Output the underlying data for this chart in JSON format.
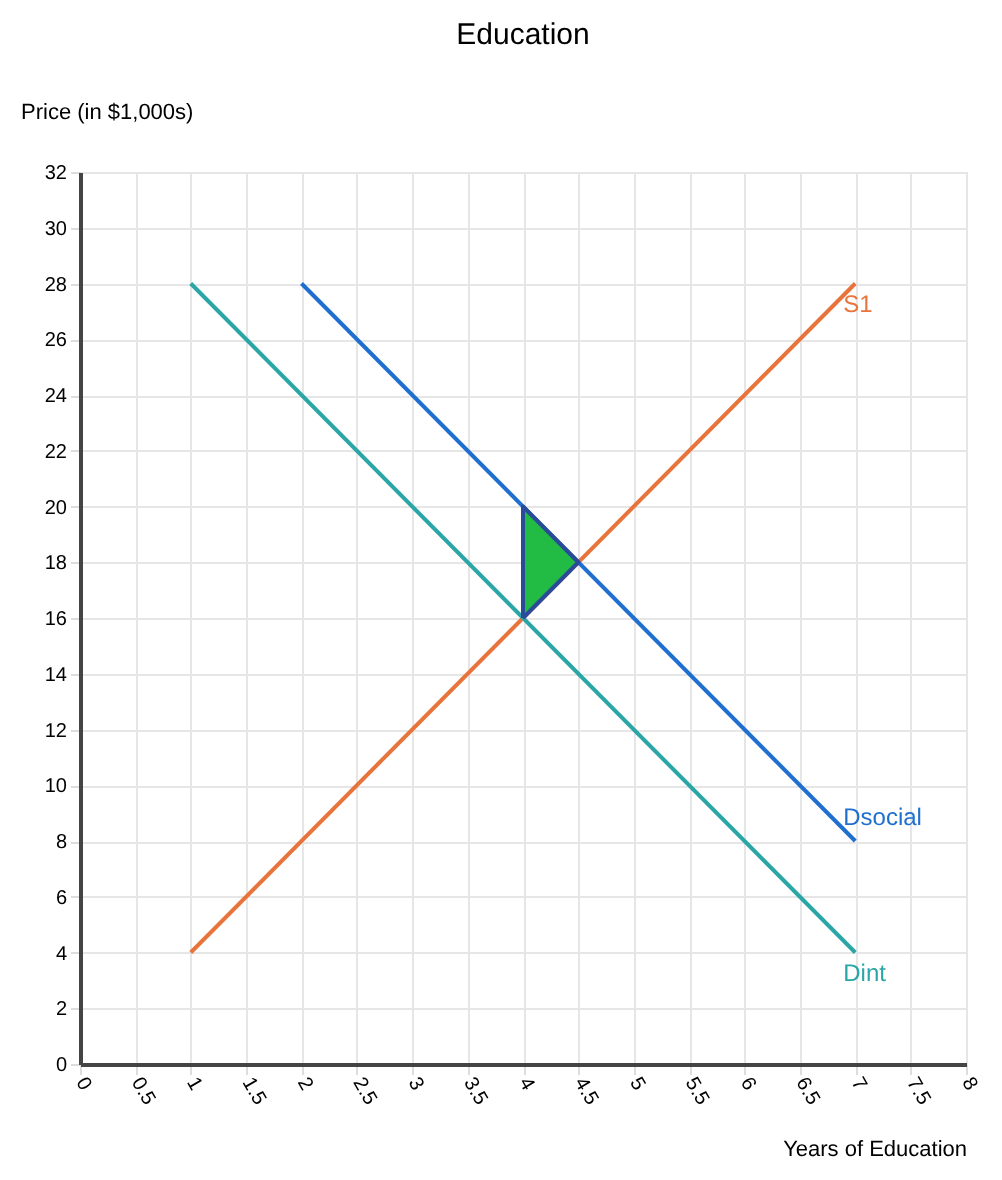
{
  "chart_data": {
    "type": "line",
    "title": "Education",
    "xlabel": "Years of Education",
    "ylabel": "Price (in $1,000s)",
    "xlim": [
      0,
      8
    ],
    "xticks": [
      0,
      0.5,
      1,
      1.5,
      2,
      2.5,
      3,
      3.5,
      4,
      4.5,
      5,
      5.5,
      6,
      6.5,
      7,
      7.5,
      8
    ],
    "ylim": [
      0,
      32
    ],
    "yticks": [
      0,
      2,
      4,
      6,
      8,
      10,
      12,
      14,
      16,
      18,
      20,
      22,
      24,
      26,
      28,
      30,
      32
    ],
    "grid": true,
    "marker": "none",
    "series": [
      {
        "name": "S1",
        "color": "#e8743b",
        "x": [
          1,
          7
        ],
        "values": [
          4,
          28
        ]
      },
      {
        "name": "Dint",
        "color": "#2aa6a6",
        "x": [
          1,
          7
        ],
        "values": [
          28,
          4
        ]
      },
      {
        "name": "Dsocial",
        "color": "#1f6fd1",
        "x": [
          2,
          7
        ],
        "values": [
          28,
          8
        ]
      },
      {
        "type": "area",
        "color": "#22bb44",
        "x": [
          4,
          4.5,
          4,
          4
        ],
        "values": [
          16,
          18,
          20,
          16
        ]
      }
    ]
  }
}
